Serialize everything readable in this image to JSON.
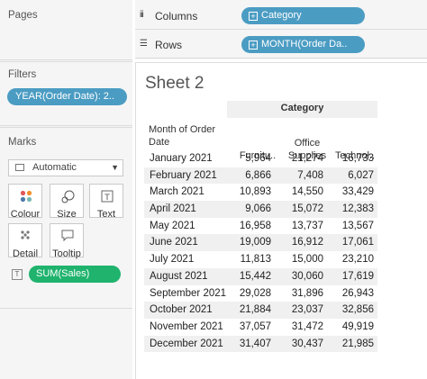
{
  "panes": {
    "pages_title": "Pages",
    "filters_title": "Filters",
    "filter_pill": "YEAR(Order Date): 2..",
    "marks_title": "Marks",
    "mark_type": "Automatic",
    "mark_buttons": {
      "colour": "Colour",
      "size": "Size",
      "text": "Text",
      "detail": "Detail",
      "tooltip": "Tooltip"
    },
    "text_icon_glyph": "T",
    "sum_pill": "SUM(Sales)"
  },
  "shelves": {
    "columns_label": "Columns",
    "columns_pill": "Category",
    "rows_label": "Rows",
    "rows_pill": "MONTH(Order Da.."
  },
  "sheet": {
    "title": "Sheet 2",
    "category_header": "Category",
    "row_header_title_line1": "Month of Order",
    "row_header_title_line2": "Date",
    "columns": [
      {
        "line1": "",
        "line2": "Furnitu.."
      },
      {
        "line1": "Office",
        "line2": "Supplies"
      },
      {
        "line1": "",
        "line2": "Technol.."
      }
    ],
    "rows": [
      {
        "month": "January 2021",
        "furniture": "5,964",
        "office": "21,274",
        "tech": "16,733"
      },
      {
        "month": "February 2021",
        "furniture": "6,866",
        "office": "7,408",
        "tech": "6,027"
      },
      {
        "month": "March 2021",
        "furniture": "10,893",
        "office": "14,550",
        "tech": "33,429"
      },
      {
        "month": "April 2021",
        "furniture": "9,066",
        "office": "15,072",
        "tech": "12,383"
      },
      {
        "month": "May 2021",
        "furniture": "16,958",
        "office": "13,737",
        "tech": "13,567"
      },
      {
        "month": "June 2021",
        "furniture": "19,009",
        "office": "16,912",
        "tech": "17,061"
      },
      {
        "month": "July 2021",
        "furniture": "11,813",
        "office": "15,000",
        "tech": "23,210"
      },
      {
        "month": "August 2021",
        "furniture": "15,442",
        "office": "30,060",
        "tech": "17,619"
      },
      {
        "month": "September 2021",
        "furniture": "29,028",
        "office": "31,896",
        "tech": "26,943"
      },
      {
        "month": "October 2021",
        "furniture": "21,884",
        "office": "23,037",
        "tech": "32,856"
      },
      {
        "month": "November 2021",
        "furniture": "37,057",
        "office": "31,472",
        "tech": "49,919"
      },
      {
        "month": "December 2021",
        "furniture": "31,407",
        "office": "30,437",
        "tech": "21,985"
      }
    ]
  },
  "colors": {
    "dimension_pill": "#4b9cc3",
    "measure_pill": "#1fb36d",
    "pane_bg": "#f5f5f5",
    "band_bg": "#f0f0f0"
  },
  "icons": {
    "columns_shelf": "columns-icon",
    "rows_shelf": "rows-icon",
    "colour": "color-dots-icon",
    "size": "size-icon",
    "text": "text-icon",
    "detail": "detail-dots-icon",
    "tooltip": "tooltip-icon",
    "dropdown": "chevron-down-icon"
  }
}
